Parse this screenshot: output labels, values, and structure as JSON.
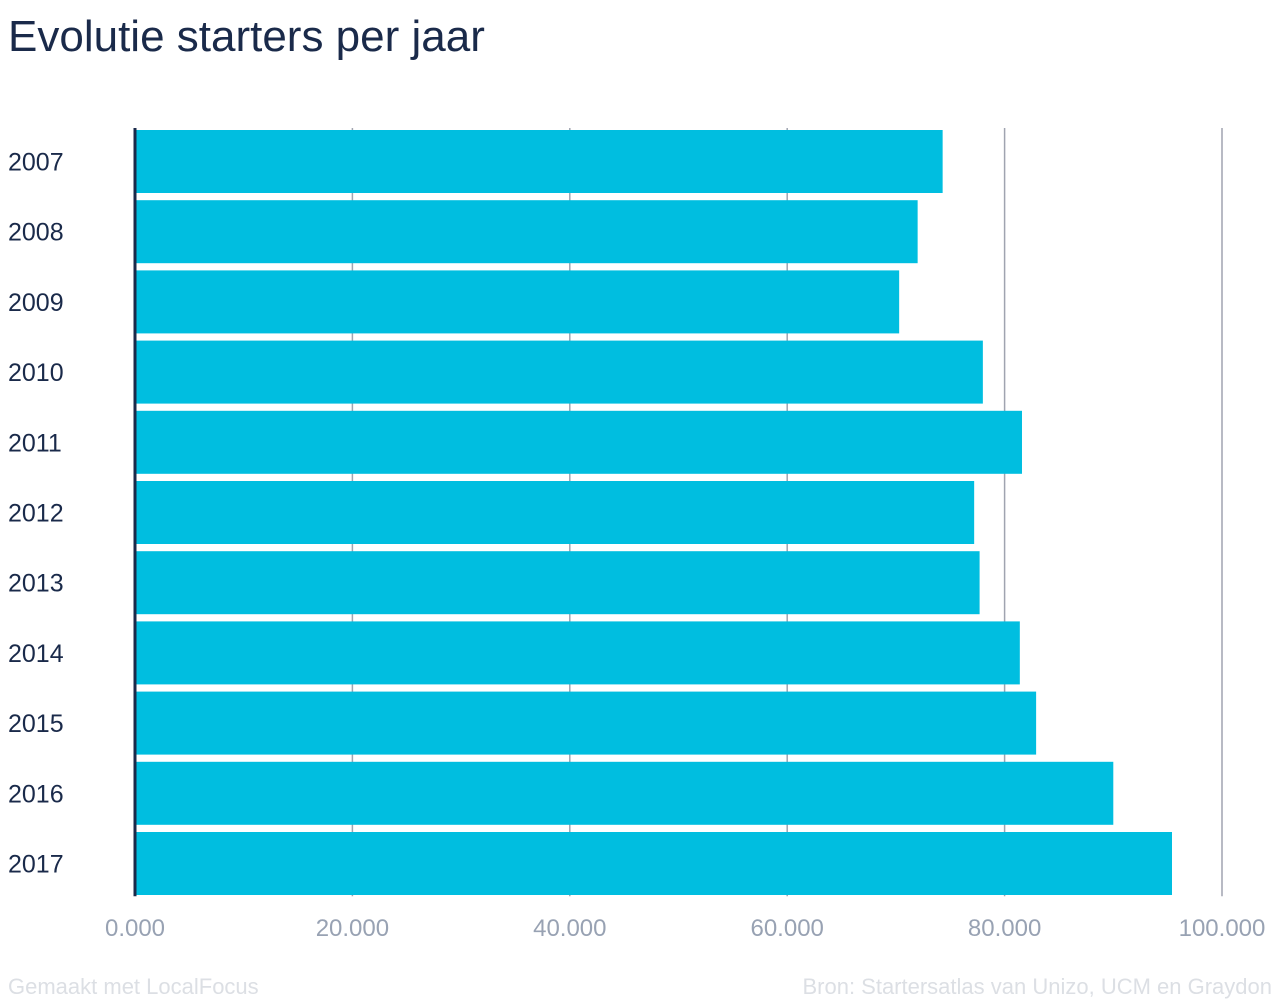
{
  "chart_data": {
    "type": "bar",
    "orientation": "horizontal",
    "title": "Evolutie starters per jaar",
    "categories": [
      "2007",
      "2008",
      "2009",
      "2010",
      "2011",
      "2012",
      "2013",
      "2014",
      "2015",
      "2016",
      "2017"
    ],
    "values": [
      74300,
      72000,
      70300,
      78000,
      81600,
      77200,
      77700,
      81400,
      82900,
      90000,
      95400
    ],
    "xlim": [
      0,
      100000
    ],
    "xticks": [
      0,
      20000,
      40000,
      60000,
      80000,
      100000
    ],
    "xtick_labels": [
      "0.000",
      "20.000",
      "40.000",
      "60.000",
      "80.000",
      "100.000"
    ],
    "grid": true,
    "bar_color": "#00bee0",
    "grid_color": "#a0a4b0",
    "axis_color": "#1a2a4a",
    "tick_label_color": "#98a2b3"
  },
  "footer": {
    "credit": "Gemaakt met LocalFocus",
    "source": "Bron: Startersatlas van Unizo, UCM en Graydon"
  }
}
